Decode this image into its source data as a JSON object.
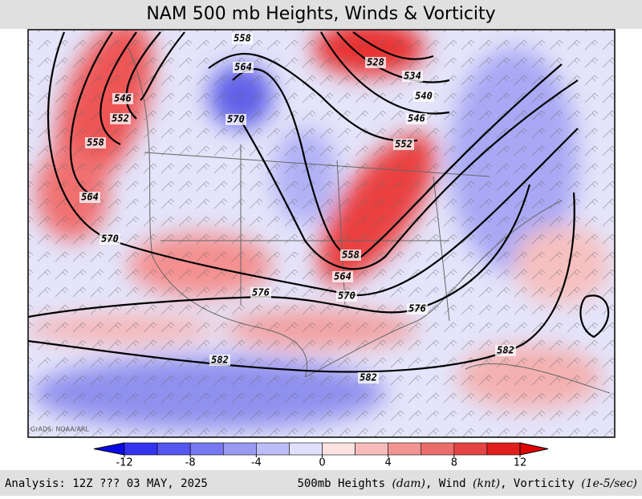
{
  "header": {
    "title": "NAM 500 mb Heights, Winds & Vorticity"
  },
  "map": {
    "watermark": "GrADS: NOAA/ARL",
    "contour_labels": [
      558,
      564,
      546,
      552,
      570,
      528,
      534,
      540,
      546,
      552,
      558,
      564,
      570,
      558,
      564,
      570,
      576,
      576,
      582,
      582,
      582
    ]
  },
  "colorbar": {
    "ticks": [
      -12,
      -8,
      -4,
      0,
      4,
      8,
      12
    ],
    "colors": [
      "#0a0ae6",
      "#3434ee",
      "#5656f0",
      "#7878f2",
      "#9a9af5",
      "#bcbcf8",
      "#e0e0fc",
      "#fde2e2",
      "#f8bcbc",
      "#f29494",
      "#ec6c6c",
      "#e64444",
      "#e01e1e",
      "#e00000"
    ]
  },
  "footer": {
    "left": "Analysis: 12Z ??? 03 MAY, 2025",
    "right": [
      "500mb Heights ",
      "(dam)",
      ", Wind ",
      "(knt)",
      ", Vorticity ",
      "(1e-5/sec)"
    ]
  }
}
